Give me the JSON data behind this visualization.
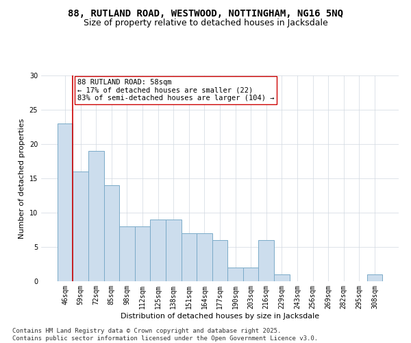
{
  "title_line1": "88, RUTLAND ROAD, WESTWOOD, NOTTINGHAM, NG16 5NQ",
  "title_line2": "Size of property relative to detached houses in Jacksdale",
  "xlabel": "Distribution of detached houses by size in Jacksdale",
  "ylabel": "Number of detached properties",
  "bar_color": "#ccdded",
  "bar_edge_color": "#7aaac8",
  "categories": [
    "46sqm",
    "59sqm",
    "72sqm",
    "85sqm",
    "98sqm",
    "112sqm",
    "125sqm",
    "138sqm",
    "151sqm",
    "164sqm",
    "177sqm",
    "190sqm",
    "203sqm",
    "216sqm",
    "229sqm",
    "243sqm",
    "256sqm",
    "269sqm",
    "282sqm",
    "295sqm",
    "308sqm"
  ],
  "values": [
    23,
    16,
    19,
    14,
    8,
    8,
    9,
    9,
    7,
    7,
    6,
    2,
    2,
    6,
    1,
    0,
    0,
    0,
    0,
    0,
    1
  ],
  "ylim": [
    0,
    30
  ],
  "yticks": [
    0,
    5,
    10,
    15,
    20,
    25,
    30
  ],
  "vline_index": 1,
  "vline_color": "#cc0000",
  "annotation_text": "88 RUTLAND ROAD: 58sqm\n← 17% of detached houses are smaller (22)\n83% of semi-detached houses are larger (104) →",
  "annotation_box_color": "#ffffff",
  "annotation_box_edge": "#cc0000",
  "footer_text": "Contains HM Land Registry data © Crown copyright and database right 2025.\nContains public sector information licensed under the Open Government Licence v3.0.",
  "title1_fontsize": 10,
  "title2_fontsize": 9,
  "axis_label_fontsize": 8,
  "tick_fontsize": 7,
  "annotation_fontsize": 7.5,
  "footer_fontsize": 6.5,
  "bg_color": "#ffffff",
  "plot_bg_color": "#ffffff",
  "grid_color": "#d0d8e0"
}
